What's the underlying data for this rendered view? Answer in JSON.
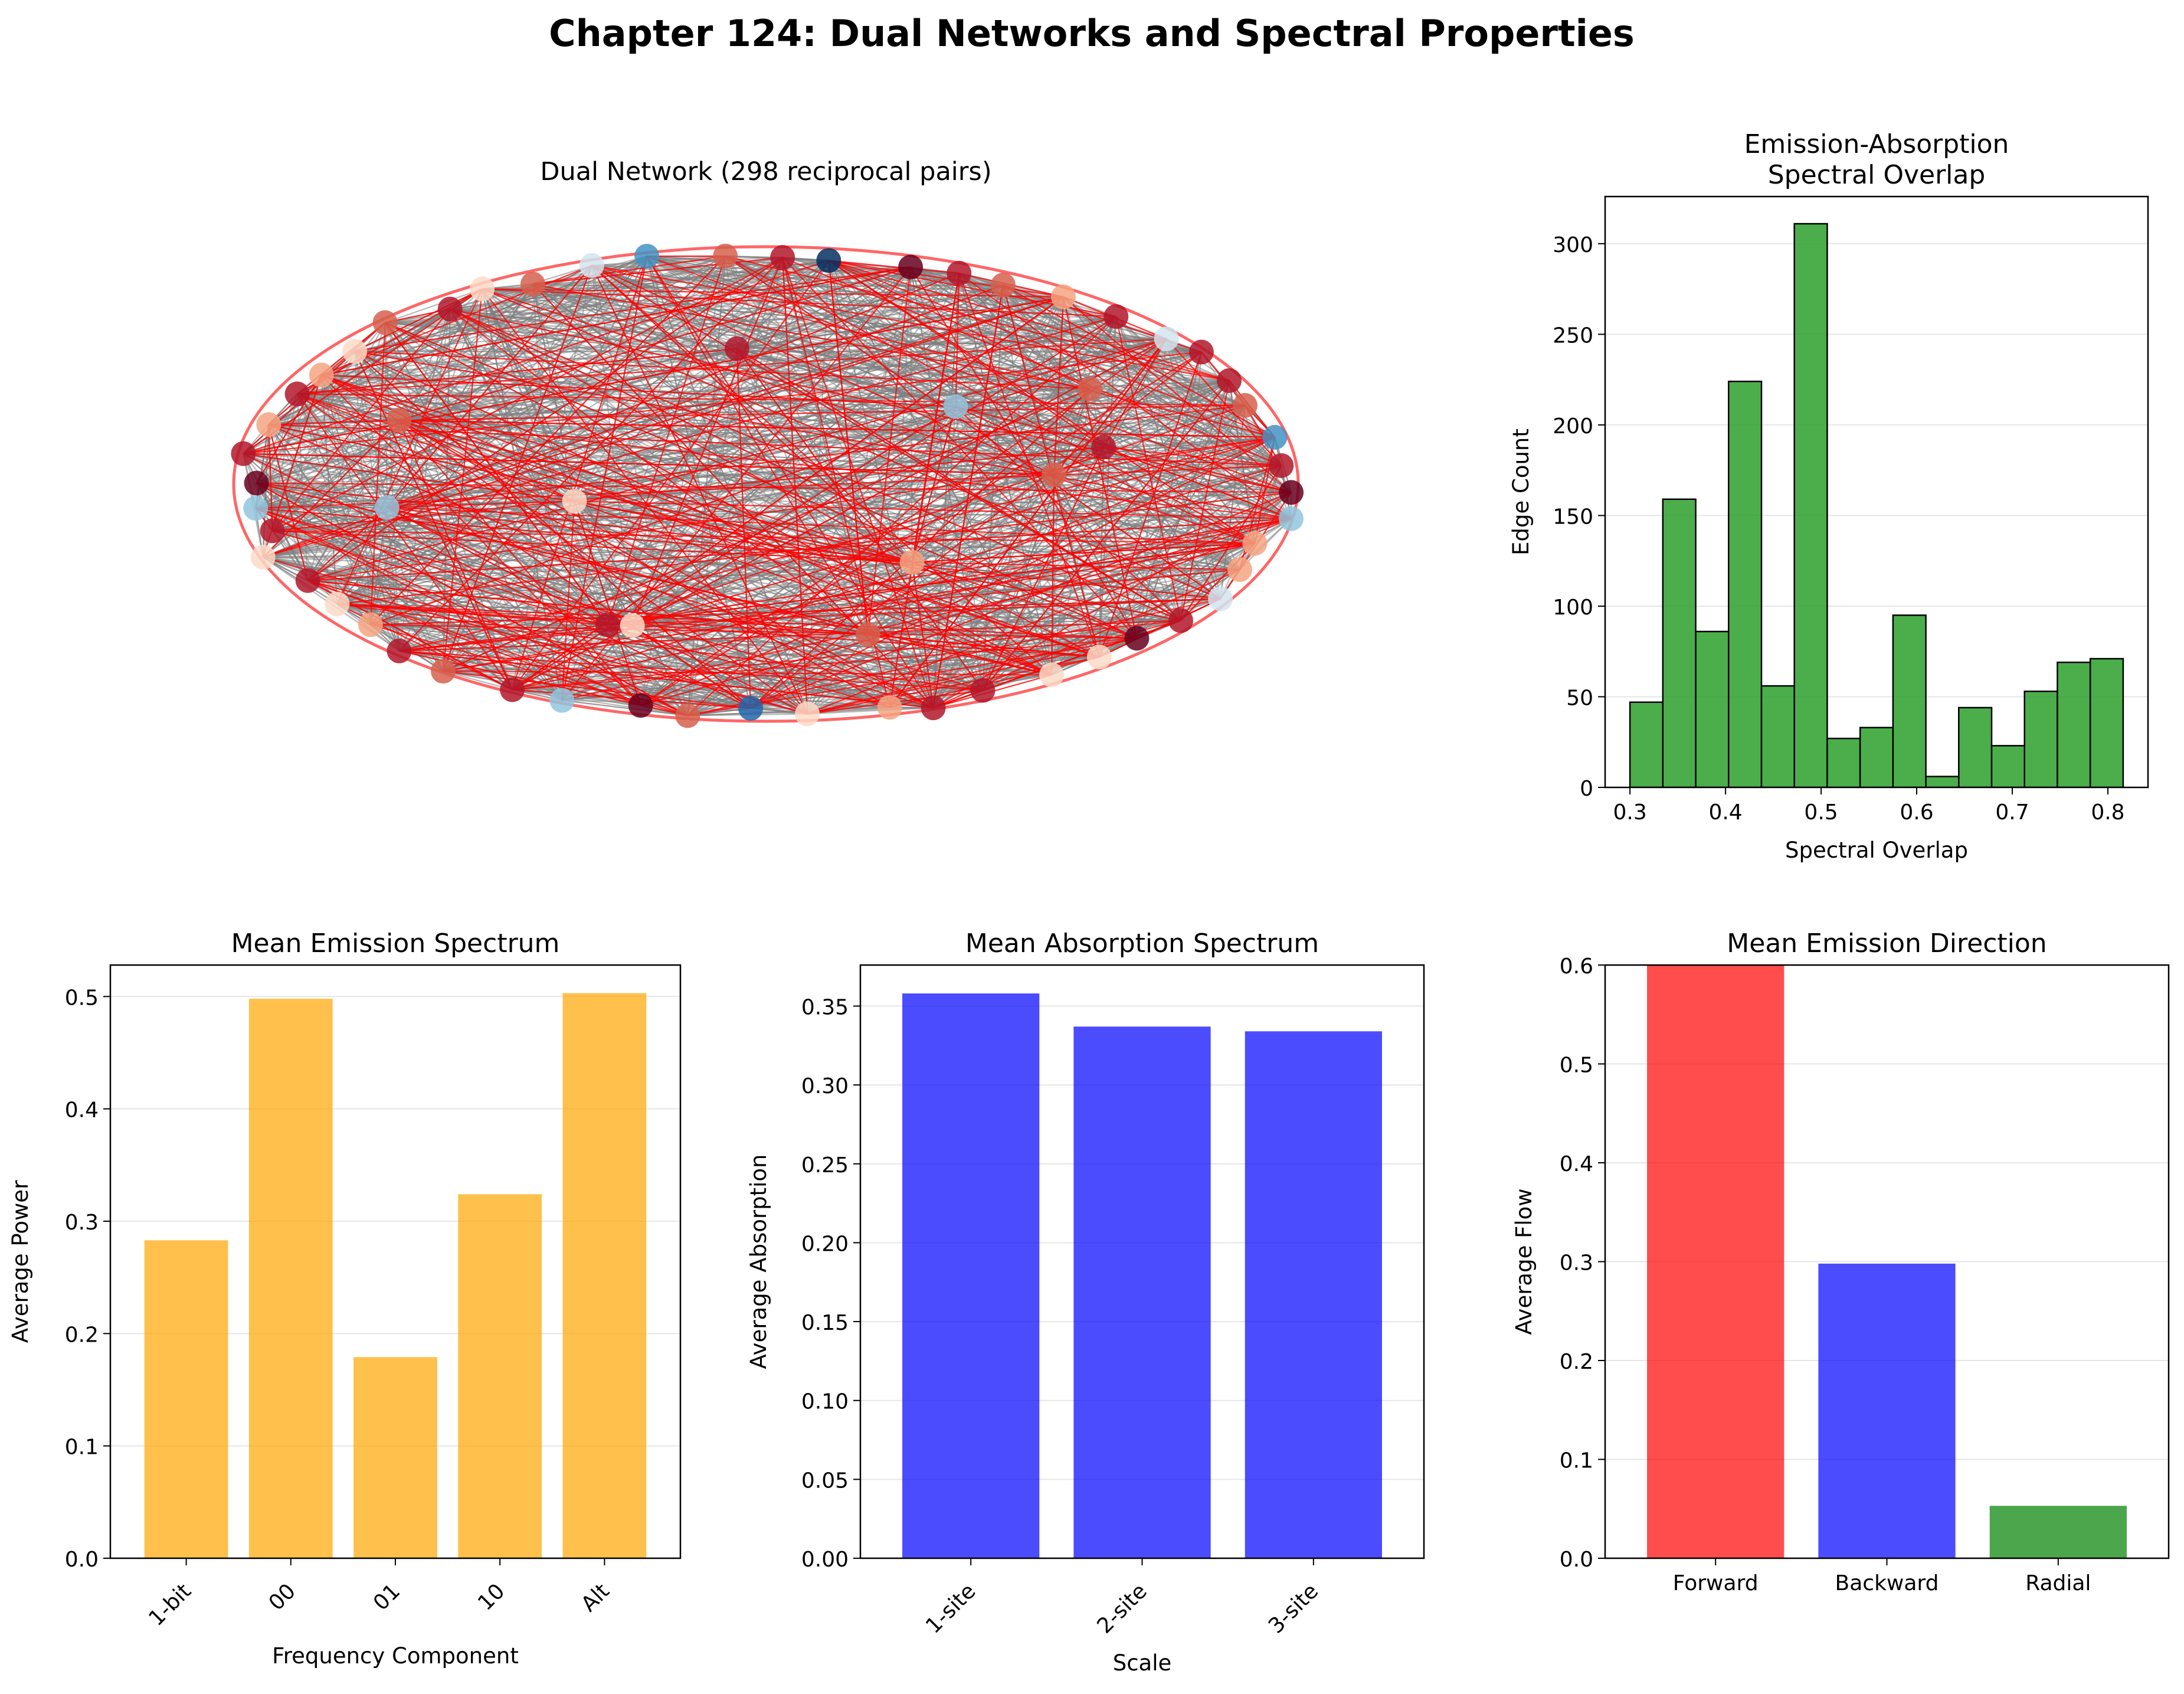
{
  "figure": {
    "title": "Chapter 124: Dual Networks and Spectral Properties"
  },
  "chart_data": [
    {
      "id": "network",
      "type": "network",
      "title": "Dual Network (298 reciprocal pairs)",
      "node_count": 64,
      "reciprocal_pairs": 298,
      "edge_color": "#808080",
      "reciprocal_edge_color": "#ff0000",
      "node_colormap": "RdBu_r"
    },
    {
      "id": "overlap",
      "type": "histogram",
      "title": "Emission-Absorption\nSpectral Overlap",
      "xlabel": "Spectral Overlap",
      "ylabel": "Edge Count",
      "bin_start": 0.3,
      "bin_width": 0.0344,
      "counts": [
        47,
        159,
        86,
        224,
        56,
        311,
        27,
        33,
        95,
        6,
        44,
        23,
        53,
        69,
        71
      ],
      "xlim": [
        0.274,
        0.842
      ],
      "ylim": [
        0,
        326
      ],
      "xticks": [
        0.3,
        0.4,
        0.5,
        0.6,
        0.7,
        0.8
      ],
      "yticks": [
        0,
        50,
        100,
        150,
        200,
        250,
        300
      ],
      "color": "#2ca02c",
      "grid": "y"
    },
    {
      "id": "emission",
      "type": "bar",
      "title": "Mean Emission Spectrum",
      "xlabel": "Frequency Component",
      "ylabel": "Average Power",
      "categories": [
        "1-bit",
        "00",
        "01",
        "10",
        "Alt"
      ],
      "values": [
        0.283,
        0.498,
        0.179,
        0.324,
        0.503
      ],
      "ylim": [
        0,
        0.528
      ],
      "yticks": [
        0.0,
        0.1,
        0.2,
        0.3,
        0.4,
        0.5
      ],
      "color": "#ffa500",
      "tick_rotation": 45,
      "grid": "y"
    },
    {
      "id": "absorption",
      "type": "bar",
      "title": "Mean Absorption Spectrum",
      "xlabel": "Scale",
      "ylabel": "Average Absorption",
      "categories": [
        "1-site",
        "2-site",
        "3-site"
      ],
      "values": [
        0.358,
        0.337,
        0.334
      ],
      "ylim": [
        0,
        0.376
      ],
      "yticks": [
        0.0,
        0.05,
        0.1,
        0.15,
        0.2,
        0.25,
        0.3,
        0.35
      ],
      "color": "#0000ff",
      "tick_rotation": 45,
      "grid": "y"
    },
    {
      "id": "direction",
      "type": "bar",
      "title": "Mean Emission Direction",
      "xlabel": "",
      "ylabel": "Average Flow",
      "categories": [
        "Forward",
        "Backward",
        "Radial"
      ],
      "values": [
        0.65,
        0.298,
        0.053
      ],
      "colors": [
        "#ff0000",
        "#0000ff",
        "#008000"
      ],
      "ylim": [
        0,
        0.6
      ],
      "yticks": [
        0.0,
        0.1,
        0.2,
        0.3,
        0.4,
        0.5,
        0.6
      ],
      "tick_rotation": 0,
      "grid": "y"
    }
  ]
}
